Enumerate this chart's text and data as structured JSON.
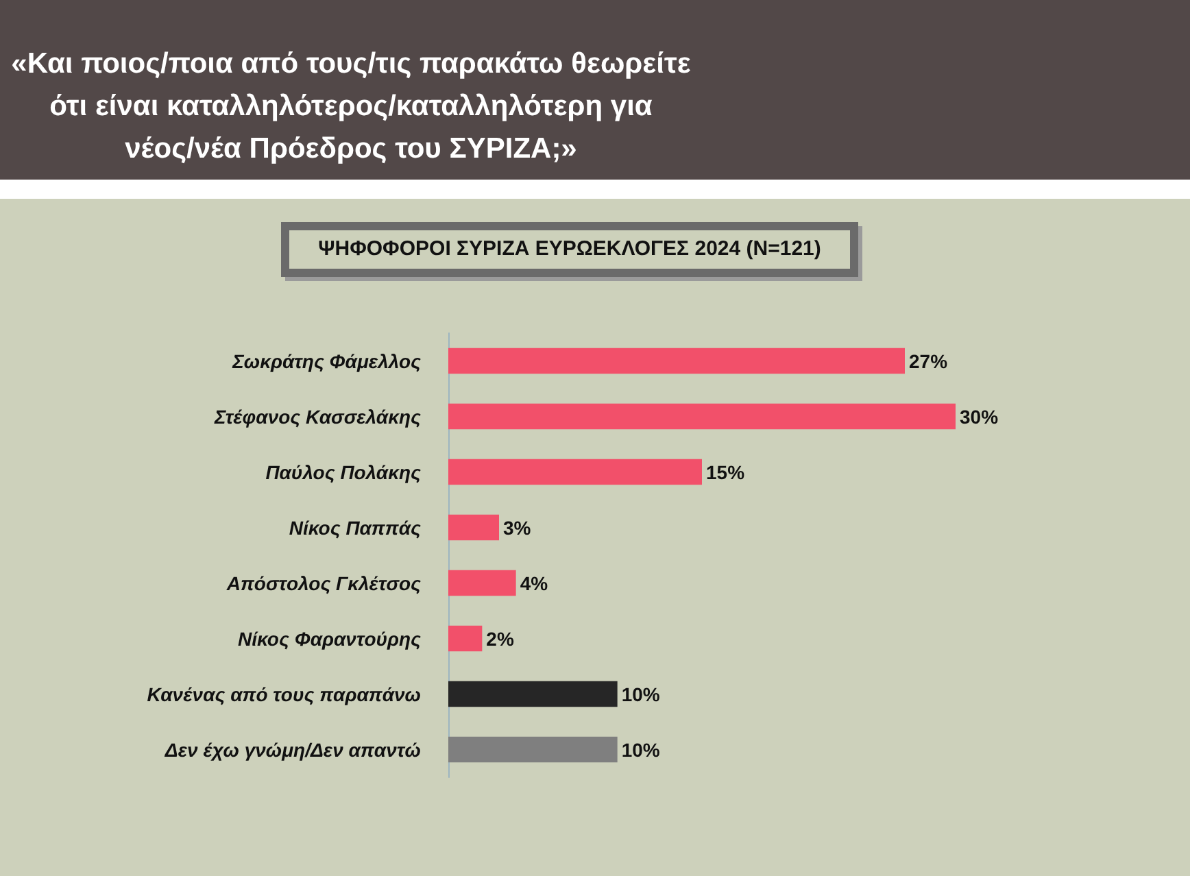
{
  "chart_data": {
    "type": "bar",
    "orientation": "horizontal",
    "title": "«Και ποιος/ποια από τους/τις παρακάτω θεωρείτε ότι είναι καταλληλότερος/καταλληλότερη για νέος/νέα Πρόεδρος του ΣΥΡΙΖΑ;»",
    "subtitle": "ΨΗΦΟΦΟΡΟΙ ΣΥΡΙΖΑ ΕΥΡΩΕΚΛΟΓΕΣ 2024 (Ν=121)",
    "categories": [
      "Σωκράτης Φάμελλος",
      "Στέφανος Κασσελάκης",
      "Παύλος Πολάκης",
      "Νίκος Παππάς",
      "Απόστολος Γκλέτσος",
      "Νίκος Φαραντούρης",
      "Κανένας από τους παραπάνω",
      "Δεν έχω γνώμη/Δεν απαντώ"
    ],
    "values": [
      27,
      30,
      15,
      3,
      4,
      2,
      10,
      10
    ],
    "colors": [
      "#f2506a",
      "#f2506a",
      "#f2506a",
      "#f2506a",
      "#f2506a",
      "#f2506a",
      "#262626",
      "#7f7f7f"
    ],
    "value_labels": [
      "27%",
      "30%",
      "15%",
      "3%",
      "4%",
      "2%",
      "10%",
      "10%"
    ],
    "tick_labels": "y"
  }
}
